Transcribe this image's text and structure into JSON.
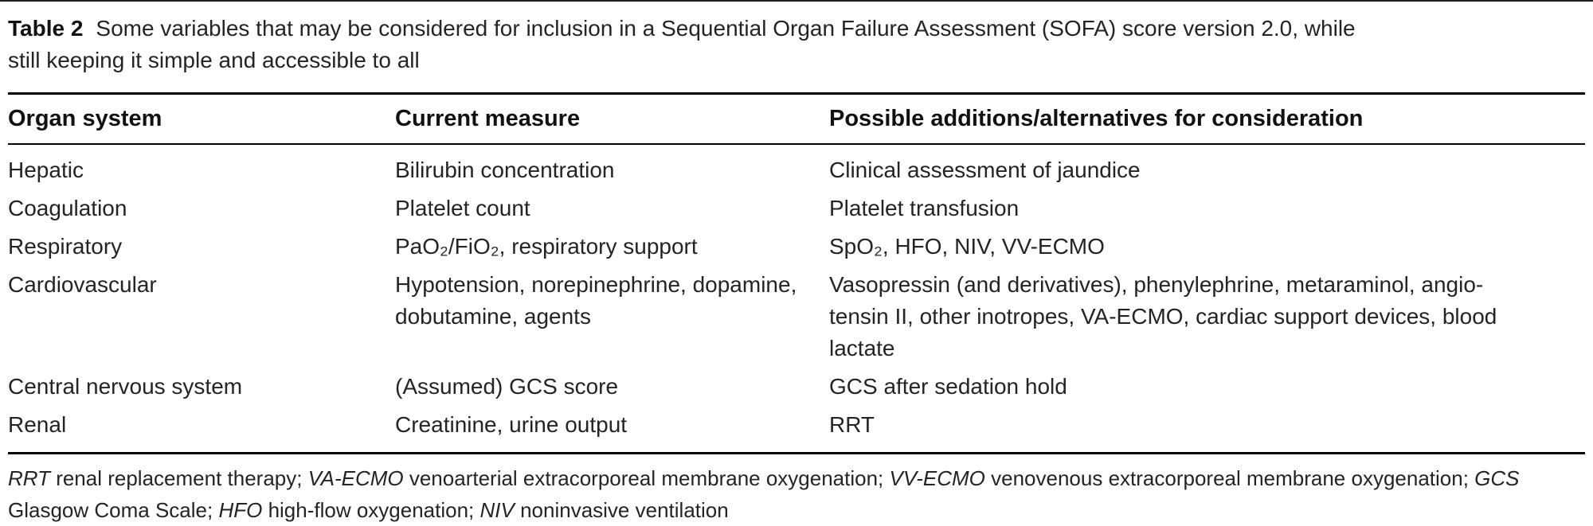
{
  "table": {
    "label": "Table 2",
    "caption_text": "Some variables that may be considered for inclusion in a Sequential Organ Failure Assessment (SOFA) score version 2.0, while\nstill keeping it simple and accessible to all",
    "columns": [
      "Organ system",
      "Current measure",
      "Possible additions/alternatives for consideration"
    ],
    "rows": [
      {
        "organ": "Hepatic",
        "measure": "Bilirubin concentration",
        "additions": "Clinical assessment of jaundice"
      },
      {
        "organ": "Coagulation",
        "measure": "Platelet count",
        "additions": "Platelet transfusion"
      },
      {
        "organ": "Respiratory",
        "measure": "PaO₂/FiO₂, respiratory support",
        "additions": "SpO₂, HFO, NIV, VV-ECMO"
      },
      {
        "organ": "Cardiovascular",
        "measure": "Hypotension, norepinephrine, dopamine,\ndobutamine, agents",
        "additions": "Vasopressin (and derivatives), phenylephrine, metaraminol, angio-\ntensin II, other inotropes, VA-ECMO, cardiac support devices, blood\nlactate"
      },
      {
        "organ": "Central nervous system",
        "measure": "(Assumed) GCS score",
        "additions": "GCS after sedation hold"
      },
      {
        "organ": "Renal",
        "measure": "Creatinine, urine output",
        "additions": "RRT"
      }
    ],
    "footnote_lines": [
      [
        {
          "text": "RRT",
          "italic": true
        },
        {
          "text": " renal replacement therapy; ",
          "italic": false
        },
        {
          "text": "VA-ECMO",
          "italic": true
        },
        {
          "text": " venoarterial extracorporeal membrane oxygenation; ",
          "italic": false
        },
        {
          "text": "VV-ECMO",
          "italic": true
        },
        {
          "text": " venovenous extracorporeal membrane oxygenation; ",
          "italic": false
        },
        {
          "text": "GCS",
          "italic": true
        }
      ],
      [
        {
          "text": "Glasgow Coma Scale; ",
          "italic": false
        },
        {
          "text": "HFO",
          "italic": true
        },
        {
          "text": " high-flow oxygenation; ",
          "italic": false
        },
        {
          "text": "NIV",
          "italic": true
        },
        {
          "text": " noninvasive ventilation",
          "italic": false
        }
      ]
    ]
  },
  "colors": {
    "text": "#242424",
    "rule": "#000000"
  }
}
